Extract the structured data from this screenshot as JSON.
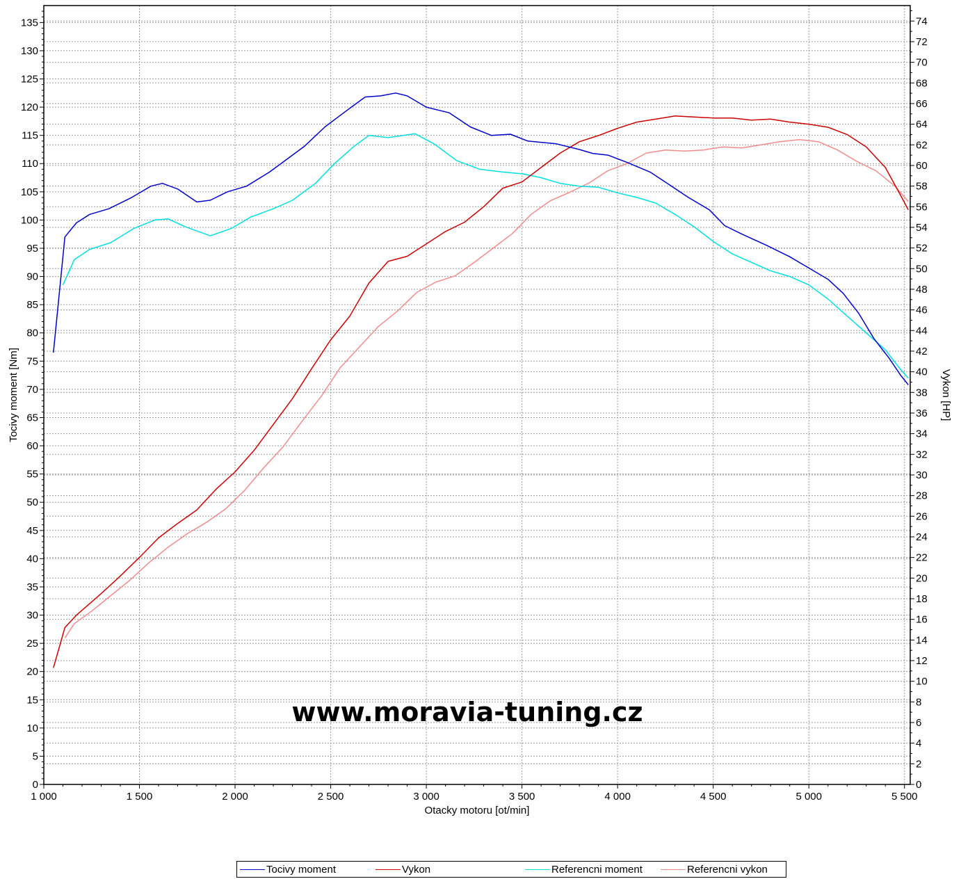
{
  "chart_data": {
    "type": "line",
    "xlabel": "Otacky motoru [ot/min]",
    "ylabel_left": "Tocivy moment [Nm]",
    "ylabel_right": "Vykon [HP]",
    "xlim": [
      1000,
      5530
    ],
    "ylim_left": [
      0,
      138
    ],
    "ylim_right": [
      0,
      75.5
    ],
    "x_ticks": [
      1000,
      1500,
      2000,
      2500,
      3000,
      3500,
      4000,
      4500,
      5000,
      5500
    ],
    "x_tick_labels": [
      "1 000",
      "1 500",
      "2 000",
      "2 500",
      "3 000",
      "3 500",
      "4 000",
      "4 500",
      "5 000",
      "5 500"
    ],
    "y_left_ticks": [
      0,
      5,
      10,
      15,
      20,
      25,
      30,
      35,
      40,
      45,
      50,
      55,
      60,
      65,
      70,
      75,
      80,
      85,
      90,
      95,
      100,
      105,
      110,
      115,
      120,
      125,
      130,
      135
    ],
    "y_right_ticks": [
      0,
      2,
      4,
      6,
      8,
      10,
      12,
      14,
      16,
      18,
      20,
      22,
      24,
      26,
      28,
      30,
      32,
      34,
      36,
      38,
      40,
      42,
      44,
      46,
      48,
      50,
      52,
      54,
      56,
      58,
      60,
      62,
      64,
      66,
      68,
      70,
      72,
      74
    ],
    "grid": true,
    "legend_position": "bottom",
    "watermark": "www.moravia-tuning.cz",
    "series": [
      {
        "name": "Tocivy moment",
        "axis": "left",
        "color": "#0000cc",
        "x": [
          1050,
          1110,
          1170,
          1240,
          1340,
          1460,
          1560,
          1620,
          1700,
          1800,
          1870,
          1960,
          2060,
          2180,
          2280,
          2360,
          2470,
          2560,
          2680,
          2760,
          2840,
          2900,
          3000,
          3120,
          3230,
          3340,
          3440,
          3530,
          3680,
          3800,
          3870,
          3950,
          4050,
          4170,
          4260,
          4370,
          4480,
          4560,
          4650,
          4780,
          4900,
          5000,
          5100,
          5180,
          5260,
          5340,
          5420,
          5480,
          5520
        ],
        "y": [
          76.5,
          97,
          99.5,
          101,
          102,
          104,
          106,
          106.5,
          105.5,
          103.2,
          103.5,
          105,
          106,
          108.5,
          111,
          113,
          116.5,
          118.8,
          121.8,
          122,
          122.5,
          122,
          120,
          119,
          116.5,
          115,
          115.2,
          114,
          113.5,
          112.5,
          111.8,
          111.5,
          110.2,
          108.5,
          106.5,
          104,
          101.8,
          99,
          97.5,
          95.5,
          93.5,
          91.5,
          89.5,
          87,
          83.5,
          79,
          75.5,
          72.5,
          70.8
        ]
      },
      {
        "name": "Vykon",
        "axis": "right",
        "color": "#cc0000",
        "x": [
          1050,
          1110,
          1170,
          1300,
          1400,
          1500,
          1600,
          1700,
          1800,
          1900,
          2000,
          2100,
          2200,
          2300,
          2400,
          2500,
          2600,
          2700,
          2800,
          2900,
          3000,
          3100,
          3200,
          3300,
          3400,
          3500,
          3600,
          3700,
          3800,
          3900,
          4000,
          4100,
          4200,
          4300,
          4400,
          4500,
          4600,
          4700,
          4800,
          4900,
          5000,
          5100,
          5200,
          5300,
          5400,
          5480,
          5520
        ],
        "y": [
          11.3,
          15.2,
          16.4,
          18.5,
          20.2,
          22,
          23.9,
          25.3,
          26.6,
          28.6,
          30.3,
          32.4,
          34.9,
          37.4,
          40.3,
          43.1,
          45.4,
          48.6,
          50.7,
          51.2,
          52.4,
          53.6,
          54.5,
          56,
          57.8,
          58.4,
          59.8,
          61.2,
          62.3,
          62.9,
          63.6,
          64.2,
          64.5,
          64.8,
          64.7,
          64.6,
          64.6,
          64.4,
          64.5,
          64.2,
          64,
          63.7,
          63,
          61.8,
          59.8,
          57.1,
          55.7
        ]
      },
      {
        "name": "Referencni moment",
        "axis": "left",
        "color": "#00e0e0",
        "x": [
          1100,
          1160,
          1240,
          1350,
          1470,
          1580,
          1650,
          1740,
          1870,
          1980,
          2080,
          2200,
          2300,
          2420,
          2520,
          2620,
          2700,
          2800,
          2880,
          2940,
          3040,
          3160,
          3280,
          3400,
          3500,
          3600,
          3700,
          3800,
          3900,
          4000,
          4100,
          4200,
          4300,
          4400,
          4500,
          4600,
          4700,
          4800,
          4900,
          5000,
          5100,
          5200,
          5300,
          5400,
          5480,
          5520
        ],
        "y": [
          88.5,
          93,
          94.8,
          96,
          98.5,
          100,
          100.2,
          98.8,
          97.2,
          98.5,
          100.5,
          102,
          103.5,
          106.5,
          110,
          113,
          115,
          114.6,
          115,
          115.3,
          113.5,
          110.5,
          109,
          108.5,
          108.2,
          107.5,
          106.5,
          106,
          105.8,
          104.8,
          104,
          103,
          101,
          98.8,
          96.2,
          94,
          92.5,
          91,
          90,
          88.5,
          86,
          83,
          80,
          77,
          73.5,
          72
        ]
      },
      {
        "name": "Referencni vykon",
        "axis": "right",
        "color": "#f08c8c",
        "x": [
          1110,
          1160,
          1250,
          1350,
          1450,
          1550,
          1650,
          1750,
          1850,
          1950,
          2050,
          2150,
          2250,
          2350,
          2450,
          2550,
          2650,
          2750,
          2850,
          2950,
          3050,
          3150,
          3250,
          3350,
          3450,
          3550,
          3650,
          3750,
          3850,
          3950,
          4050,
          4150,
          4250,
          4350,
          4450,
          4550,
          4650,
          4750,
          4850,
          4950,
          5050,
          5150,
          5250,
          5350,
          5450,
          5520
        ],
        "y": [
          14.2,
          15.6,
          16.8,
          18.3,
          19.8,
          21.5,
          23,
          24.3,
          25.4,
          26.7,
          28.5,
          30.7,
          32.7,
          35.2,
          37.6,
          40.4,
          42.4,
          44.4,
          45.9,
          47.7,
          48.7,
          49.3,
          50.6,
          52,
          53.4,
          55.3,
          56.6,
          57.4,
          58.3,
          59.5,
          60.2,
          61.2,
          61.5,
          61.4,
          61.5,
          61.8,
          61.7,
          62,
          62.3,
          62.5,
          62.3,
          61.5,
          60.4,
          59.5,
          58,
          56.5
        ]
      }
    ]
  }
}
